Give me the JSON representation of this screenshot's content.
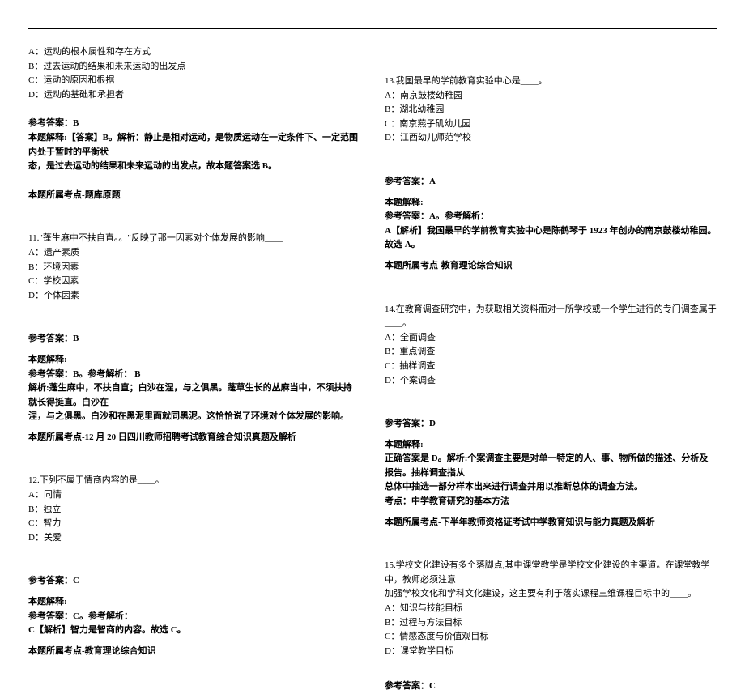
{
  "left": {
    "q10_options": {
      "a": "A：运动的根本属性和存在方式",
      "b": "B：过去运动的结果和未来运动的出发点",
      "c": "C：运动的原因和根据",
      "d": "D：运动的基础和承担者"
    },
    "q10_answer_label": "参考答案：B",
    "q10_explain1": "本题解释:【答案】B。解析：静止是相对运动，是物质运动在一定条件下、一定范围内处于暂时的平衡状",
    "q10_explain2": "态，是过去运动的结果和未来运动的出发点，故本题答案选 B。",
    "q10_source": "本题所属考点-题库原题",
    "q11_stem": "11.\"蓬生麻中不扶自直。。\"反映了那一因素对个体发展的影响____",
    "q11_options": {
      "a": "A：遗产素质",
      "b": "B：环境因素",
      "c": "C：学校因素",
      "d": "D：个体因素"
    },
    "q11_answer_label": "参考答案：B",
    "q11_exp_hdr": "本题解释:",
    "q11_exp_line1": "参考答案：B。参考解析： B",
    "q11_exp_line2": "解析:蓬生麻中，不扶自直；白沙在涅，与之俱黑。蓬草生长的丛麻当中，不须扶持就长得挺直。白沙在",
    "q11_exp_line3": "涅，与之俱黑。白沙和在黑泥里面就同黑泥。这恰恰说了环境对个体发展的影响。",
    "q11_source": "本题所属考点-12 月 20 日四川教师招聘考试教育综合知识真题及解析",
    "q12_stem": "12.下列不属于情商内容的是____。",
    "q12_options": {
      "a": "A：同情",
      "b": "B：独立",
      "c": "C：智力",
      "d": "D：关爱"
    },
    "q12_answer_label": "参考答案：C",
    "q12_exp_hdr": "本题解释:",
    "q12_exp_line1": "参考答案：C。参考解析：",
    "q12_exp_line2": "C【解析】智力是智商的内容。故选 C。",
    "q12_source": "本题所属考点-教育理论综合知识"
  },
  "right": {
    "q13_stem": "13.我国最早的学前教育实验中心是____。",
    "q13_options": {
      "a": "A：南京鼓楼幼稚园",
      "b": "B：湖北幼稚园",
      "c": "C：南京燕子矶幼儿园",
      "d": "D：江西幼儿师范学校"
    },
    "q13_answer_label": "参考答案：A",
    "q13_exp_hdr": "本题解释:",
    "q13_exp_line1": "参考答案：A。参考解析：",
    "q13_exp_line2": "A【解析】我国最早的学前教育实验中心是陈鹤琴于 1923 年创办的南京鼓楼幼稚园。故选 A。",
    "q13_source": "本题所属考点-教育理论综合知识",
    "q14_stem": "14.在教育调查研究中，为获取相关资料而对一所学校或一个学生进行的专门调查属于____。",
    "q14_options": {
      "a": "A：全面调查",
      "b": "B：重点调查",
      "c": "C：抽样调查",
      "d": "D：个案调查"
    },
    "q14_answer_label": "参考答案：D",
    "q14_exp_hdr": "本题解释:",
    "q14_exp_line1": "正确答案是 D。解析:个案调查主要是对单一特定的人、事、物所做的描述、分析及报告。抽样调查指从",
    "q14_exp_line2": "总体中抽选一部分样本出来进行调查并用以推断总体的调查方法。",
    "q14_exp_line3": "考点：中学教育研究的基本方法",
    "q14_source": "本题所属考点-下半年教师资格证考试中学教育知识与能力真题及解析",
    "q15_stem1": "15.学校文化建设有多个落脚点,其中课堂教学是学校文化建设的主渠道。在课堂教学中，教师必须注意",
    "q15_stem2": "加强学校文化和学科文化建设，这主要有利于落实课程三维课程目标中的____。",
    "q15_options": {
      "a": "A：知识与技能目标",
      "b": "B：过程与方法目标",
      "c": "C：情感态度与价值观目标",
      "d": "D：课堂教学目标"
    },
    "q15_answer_label": "参考答案：C"
  }
}
